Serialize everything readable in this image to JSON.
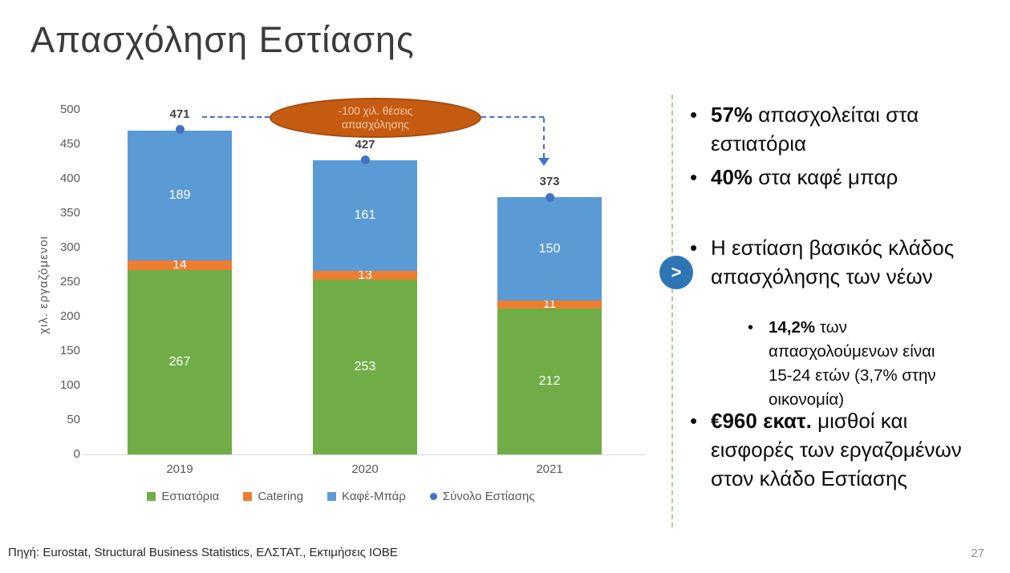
{
  "slide": {
    "title": "Απασχόληση Εστίασης",
    "page_number": "27",
    "source_note": "Πηγή: Eurostat, Structural Business Statistics, ΕΛΣΤΑΤ., Εκτιμήσεις ΙΟΒΕ",
    "next_chevron": ">",
    "accent_colors": {
      "separator_green": "#A9D18E",
      "next_circle_blue": "#2E75B6"
    }
  },
  "chart_data": {
    "type": "bar",
    "stacked": true,
    "title": "",
    "xlabel": "",
    "ylabel": "χιλ. εργαζόμενοι",
    "ylim": [
      0,
      500
    ],
    "ytick_step": 50,
    "grid": false,
    "legend_position": "bottom",
    "categories": [
      "2019",
      "2020",
      "2021"
    ],
    "series": [
      {
        "name": "Εστιατόρια",
        "color": "#70AD47",
        "label_color": "#FFFFFF",
        "values": [
          267,
          253,
          212
        ]
      },
      {
        "name": "Catering",
        "color": "#ED7D31",
        "label_color": "#FFFFFF",
        "values": [
          14,
          13,
          11
        ]
      },
      {
        "name": "Καφέ-Μπάρ",
        "color": "#5B9BD5",
        "label_color": "#FFFFFF",
        "values": [
          189,
          161,
          150
        ]
      }
    ],
    "total_series": {
      "name": "Σύνολο Εστίασης",
      "color": "#4472C4",
      "values": [
        471,
        427,
        373
      ]
    },
    "annotation": {
      "line1": "-100 χιλ. θέσεις",
      "line2": "απασχόλησης",
      "fill_color": "#C55A11",
      "border_color": "#A64B10",
      "text_color": "#F6CDAF",
      "connector_color": "#4472C4"
    }
  },
  "right_panel": {
    "bullets": [
      {
        "bold": "57%",
        "text": " απασχολείται στα εστιατόρια"
      },
      {
        "bold": "40%",
        "text": " στα καφέ μπαρ"
      },
      {
        "bold": "",
        "text": "Η εστίαση βασικός κλάδος απασχόλησης των νέων"
      },
      {
        "bold": "14,2%",
        "text": " των απασχολούμενων είναι 15-24 ετών (3,7% στην οικονομία)"
      },
      {
        "bold": "€960 εκατ.",
        "text": " μισθοί και εισφορές των εργαζομένων στον κλάδο Εστίασης"
      }
    ]
  }
}
